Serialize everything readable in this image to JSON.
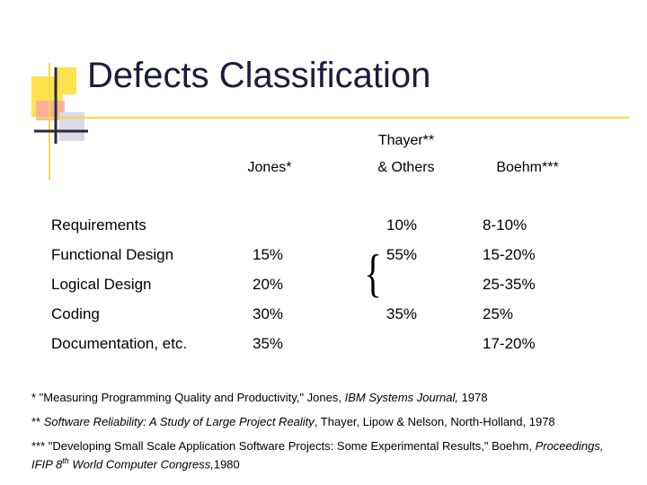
{
  "title": "Defects Classification",
  "table": {
    "header": [
      [
        "Jones*"
      ],
      [
        "Thayer**",
        "& Others"
      ],
      [
        "Boehm***"
      ]
    ],
    "rows": [
      [
        "Requirements",
        null,
        "10%",
        "8-10%"
      ],
      [
        "Functional Design",
        "15%",
        "55%",
        "15-20%"
      ],
      [
        "Logical Design",
        "20%",
        null,
        "25-35%"
      ],
      [
        "Coding",
        "30%",
        "35%",
        "25%"
      ],
      [
        "Documentation, etc.",
        "35%",
        null,
        "17-20%"
      ]
    ]
  },
  "footnotes": [
    [
      {
        "text": "* \"Measuring Programming Quality and Productivity,\" Jones, ",
        "style": "normal"
      },
      {
        "text": "IBM Systems Journal,",
        "style": "italic"
      },
      {
        "text": " 1978",
        "style": "normal"
      }
    ],
    [
      {
        "text": "** ",
        "style": "normal"
      },
      {
        "text": "Software Reliability: A Study of Large Project Reality",
        "style": "italic"
      },
      {
        "text": ", Thayer, Lipow & Nelson, North-Holland, 1978",
        "style": "normal"
      }
    ],
    [
      {
        "text": "*** \"Developing Small Scale Application Software Projects: Some Experimental Results,\" Boehm, ",
        "style": "normal"
      },
      {
        "text": "Proceedings, IFIP 8",
        "style": "italic"
      },
      {
        "text": "th",
        "style": "sup-italic"
      },
      {
        "text": " World Computer Congress,",
        "style": "italic"
      },
      {
        "text": "1980",
        "style": "normal"
      }
    ]
  ]
}
